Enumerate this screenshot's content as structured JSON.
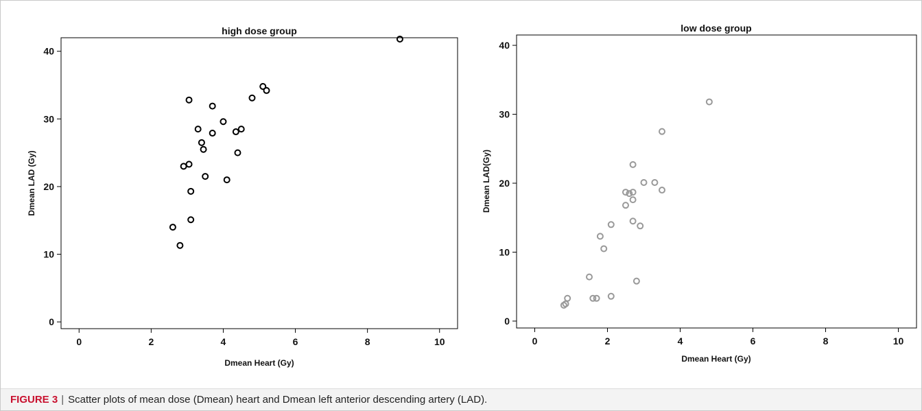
{
  "caption": {
    "label": "FIGURE 3",
    "separator": "|",
    "text": "Scatter plots of mean dose (Dmean) heart and Dmean left anterior descending artery (LAD)."
  },
  "chart_data": [
    {
      "type": "scatter",
      "title": "high dose group",
      "xlabel": "Dmean Heart (Gy)",
      "ylabel": "Dmean LAD (Gy)",
      "xlim": [
        -0.5,
        10.5
      ],
      "ylim": [
        -1,
        42
      ],
      "xticks": [
        0,
        2,
        4,
        6,
        8,
        10
      ],
      "yticks": [
        0,
        10,
        20,
        30,
        40
      ],
      "grid": false,
      "marker": "open-circle",
      "marker_color": "#000000",
      "series": [
        {
          "points": [
            [
              2.6,
              14.0
            ],
            [
              2.8,
              11.3
            ],
            [
              2.9,
              23.0
            ],
            [
              3.05,
              23.3
            ],
            [
              3.05,
              32.8
            ],
            [
              3.1,
              19.3
            ],
            [
              3.1,
              15.1
            ],
            [
              3.3,
              28.5
            ],
            [
              3.4,
              26.5
            ],
            [
              3.45,
              25.5
            ],
            [
              3.5,
              21.5
            ],
            [
              3.7,
              31.9
            ],
            [
              3.7,
              27.9
            ],
            [
              4.0,
              29.6
            ],
            [
              4.1,
              21.0
            ],
            [
              4.35,
              28.1
            ],
            [
              4.4,
              25.0
            ],
            [
              4.5,
              28.5
            ],
            [
              4.8,
              33.1
            ],
            [
              5.1,
              34.8
            ],
            [
              5.2,
              34.2
            ],
            [
              8.9,
              41.8
            ]
          ]
        }
      ]
    },
    {
      "type": "scatter",
      "title": "low dose group",
      "xlabel": "Dmean Heart (Gy)",
      "ylabel": "Dmean LAD(Gy)",
      "xlim": [
        -0.5,
        10.5
      ],
      "ylim": [
        -1,
        41.5
      ],
      "xticks": [
        0,
        2,
        4,
        6,
        8,
        10
      ],
      "yticks": [
        0,
        10,
        20,
        30,
        40
      ],
      "grid": false,
      "marker": "open-circle",
      "marker_color": "#999999",
      "series": [
        {
          "points": [
            [
              0.8,
              2.3
            ],
            [
              0.85,
              2.5
            ],
            [
              0.9,
              3.3
            ],
            [
              1.5,
              6.4
            ],
            [
              1.6,
              3.3
            ],
            [
              1.7,
              3.3
            ],
            [
              1.8,
              12.3
            ],
            [
              1.9,
              10.5
            ],
            [
              2.1,
              14.0
            ],
            [
              2.1,
              3.6
            ],
            [
              2.5,
              16.8
            ],
            [
              2.5,
              18.7
            ],
            [
              2.6,
              18.5
            ],
            [
              2.7,
              18.7
            ],
            [
              2.7,
              17.6
            ],
            [
              2.7,
              22.7
            ],
            [
              2.7,
              14.5
            ],
            [
              2.8,
              5.8
            ],
            [
              2.9,
              13.8
            ],
            [
              3.0,
              20.1
            ],
            [
              3.3,
              20.1
            ],
            [
              3.5,
              19.0
            ],
            [
              3.5,
              27.5
            ],
            [
              4.8,
              31.8
            ]
          ]
        }
      ]
    }
  ]
}
